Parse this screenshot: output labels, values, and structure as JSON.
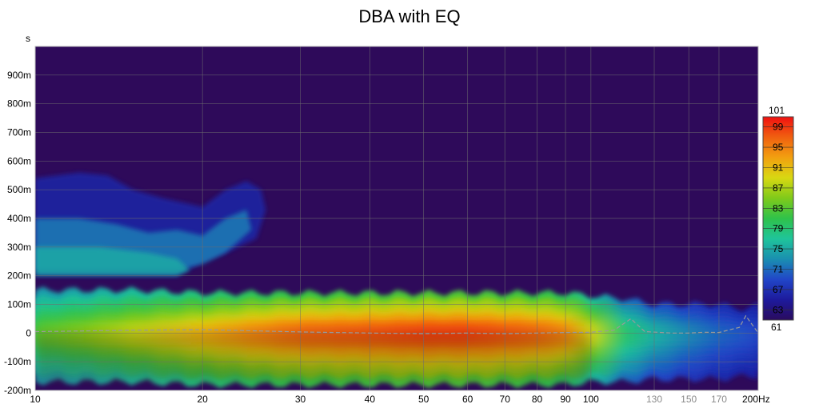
{
  "chart_data": {
    "type": "heatmap",
    "title": "DBA with EQ",
    "ylabel": "s",
    "x_scale": "log",
    "xlim": [
      10,
      200
    ],
    "ylim": [
      -0.2,
      1.0
    ],
    "x_ticks": [
      {
        "value": 10,
        "label": "10",
        "muted": false
      },
      {
        "value": 20,
        "label": "20",
        "muted": false
      },
      {
        "value": 30,
        "label": "30",
        "muted": false
      },
      {
        "value": 40,
        "label": "40",
        "muted": false
      },
      {
        "value": 50,
        "label": "50",
        "muted": false
      },
      {
        "value": 60,
        "label": "60",
        "muted": false
      },
      {
        "value": 70,
        "label": "70",
        "muted": false
      },
      {
        "value": 80,
        "label": "80",
        "muted": false
      },
      {
        "value": 90,
        "label": "90",
        "muted": false
      },
      {
        "value": 100,
        "label": "100",
        "muted": false
      },
      {
        "value": 130,
        "label": "130",
        "muted": true
      },
      {
        "value": 150,
        "label": "150",
        "muted": true
      },
      {
        "value": 170,
        "label": "170",
        "muted": true
      },
      {
        "value": 200,
        "label": "200Hz",
        "muted": false
      }
    ],
    "y_ticks": [
      {
        "value": 0.9,
        "label": "900m"
      },
      {
        "value": 0.8,
        "label": "800m"
      },
      {
        "value": 0.7,
        "label": "700m"
      },
      {
        "value": 0.6,
        "label": "600m"
      },
      {
        "value": 0.5,
        "label": "500m"
      },
      {
        "value": 0.4,
        "label": "400m"
      },
      {
        "value": 0.3,
        "label": "300m"
      },
      {
        "value": 0.2,
        "label": "200m"
      },
      {
        "value": 0.1,
        "label": "100m"
      },
      {
        "value": 0.0,
        "label": "0"
      },
      {
        "value": -0.1,
        "label": "-100m"
      },
      {
        "value": -0.2,
        "label": "-200m"
      }
    ],
    "colorbar": {
      "min": 61,
      "max": 101,
      "min_label": "61",
      "max_label": "101",
      "ticks": [
        99,
        95,
        91,
        87,
        83,
        79,
        75,
        71,
        67,
        63
      ],
      "tick_labels": [
        "99",
        "95",
        "91",
        "87",
        "83",
        "79",
        "75",
        "71",
        "67",
        "63"
      ],
      "colors": [
        "#2a0b5e",
        "#1d1a9c",
        "#2146c8",
        "#1a8fb0",
        "#1fc49a",
        "#2fc24a",
        "#7fca1a",
        "#d8d812",
        "#f2a010",
        "#f06010",
        "#f01010"
      ]
    },
    "background_color": "#2e0a5a",
    "ridge": {
      "note": "energy band centered on t=0 across frequency",
      "x": [
        10,
        12,
        15,
        20,
        25,
        30,
        40,
        50,
        60,
        70,
        80,
        90,
        100,
        115,
        130,
        150,
        170,
        190,
        200
      ],
      "peak_level": [
        84,
        86,
        89,
        93,
        96,
        98,
        99,
        100,
        100,
        99,
        98,
        96,
        90,
        80,
        76,
        73,
        71,
        70,
        69
      ],
      "upper_extent_s": [
        0.15,
        0.15,
        0.15,
        0.14,
        0.14,
        0.14,
        0.14,
        0.14,
        0.14,
        0.14,
        0.14,
        0.14,
        0.13,
        0.12,
        0.1,
        0.1,
        0.1,
        0.08,
        0.1
      ],
      "lower_extent_s": [
        -0.17,
        -0.17,
        -0.17,
        -0.18,
        -0.18,
        -0.18,
        -0.18,
        -0.18,
        -0.18,
        -0.18,
        -0.18,
        -0.18,
        -0.17,
        -0.17,
        -0.16,
        -0.16,
        -0.16,
        -0.15,
        -0.15
      ]
    },
    "trace": {
      "x": [
        10,
        15,
        20,
        30,
        40,
        50,
        60,
        70,
        80,
        90,
        100,
        110,
        118,
        125,
        140,
        150,
        160,
        170,
        185,
        190,
        200
      ],
      "y": [
        0.005,
        0.01,
        0.012,
        0.004,
        0.0,
        -0.002,
        0.0,
        -0.002,
        0.0,
        0.002,
        0.003,
        0.01,
        0.05,
        0.005,
        0.0,
        0.0,
        0.003,
        0.002,
        0.02,
        0.06,
        0.0
      ]
    }
  }
}
